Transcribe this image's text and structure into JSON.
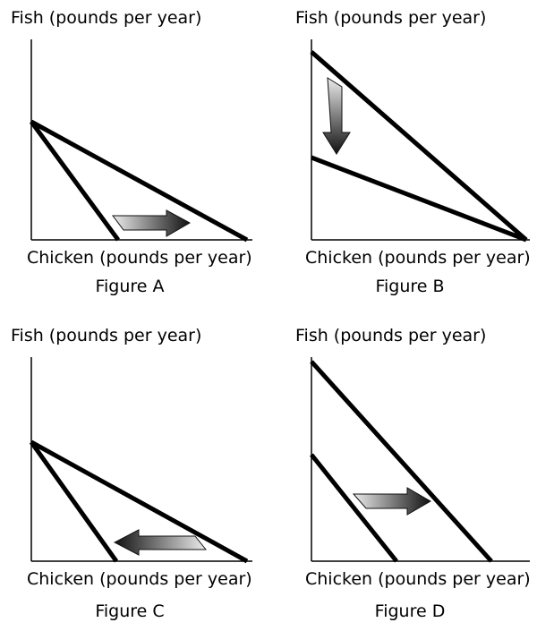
{
  "figures": [
    {
      "y_label": "Fish (pounds per year)",
      "x_label": "Chicken (pounds per year)",
      "caption": "Figure A"
    },
    {
      "y_label": "Fish (pounds per year)",
      "x_label": "Chicken (pounds per year)",
      "caption": "Figure B"
    },
    {
      "y_label": "Fish (pounds per year)",
      "x_label": "Chicken (pounds per year)",
      "caption": "Figure C"
    },
    {
      "y_label": "Fish (pounds per year)",
      "x_label": "Chicken (pounds per year)",
      "caption": "Figure D"
    }
  ]
}
